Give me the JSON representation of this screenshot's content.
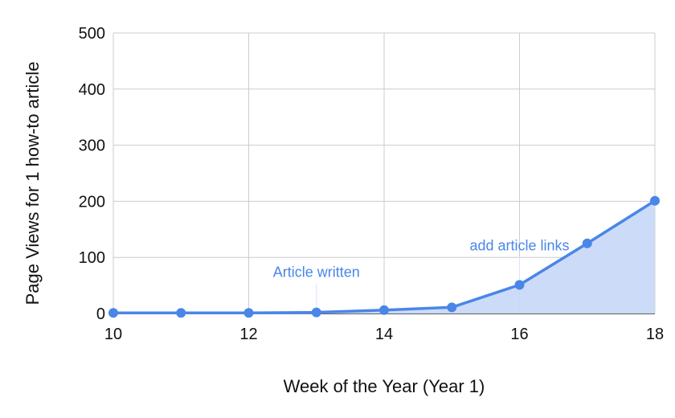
{
  "chart_data": {
    "type": "area",
    "title": "",
    "xlabel": "Week of the Year (Year 1)",
    "ylabel": "Page Views for 1 how-to article",
    "x": [
      10,
      11,
      12,
      13,
      14,
      15,
      16,
      17,
      18
    ],
    "series": [
      {
        "values": [
          1,
          1,
          1,
          2,
          6,
          11,
          51,
          125,
          201
        ]
      }
    ],
    "xlim": [
      10,
      18
    ],
    "ylim": [
      0,
      500
    ],
    "xticks": [
      10,
      12,
      14,
      16,
      18
    ],
    "yticks": [
      0,
      100,
      200,
      300,
      400,
      500
    ],
    "grid": true,
    "annotations": [
      {
        "x": 13,
        "y": 2,
        "text": "Article written"
      },
      {
        "x": 16,
        "y": 51,
        "text": "add article links"
      }
    ],
    "colors": {
      "line": "#4a86e8",
      "fill": "#c9daf8",
      "grid": "#cccccc"
    }
  }
}
